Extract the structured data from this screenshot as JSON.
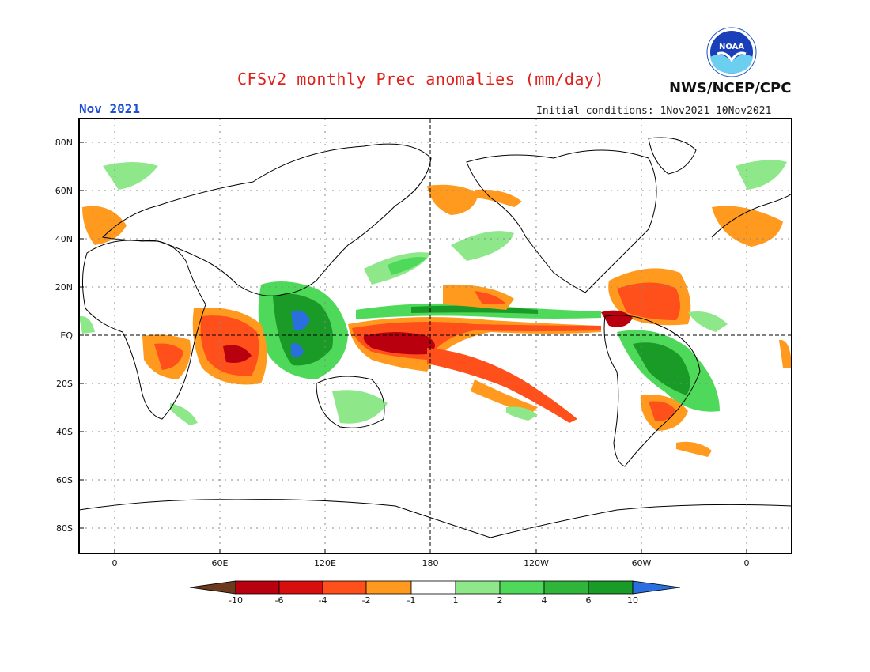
{
  "header": {
    "title": "CFSv2 monthly Prec anomalies (mm/day)",
    "month": "Nov 2021",
    "initial_conditions": "Initial conditions: 1Nov2021—10Nov2021",
    "agency": "NWS/NCEP/CPC",
    "logo_text": "NOAA"
  },
  "map": {
    "lat_ticks": [
      "80N",
      "60N",
      "40N",
      "20N",
      "EQ",
      "20S",
      "40S",
      "60S",
      "80S"
    ],
    "lon_ticks": [
      "0",
      "60E",
      "120E",
      "180",
      "120W",
      "60W",
      "0"
    ],
    "projection": "cylindrical equidistant, centered on 180",
    "grid": "dotted lat/lon lines every 20 degrees",
    "reference_lines": [
      "equator dashed",
      "180 meridian dashed"
    ]
  },
  "colorbar": {
    "labels": [
      "-10",
      "-6",
      "-4",
      "-2",
      "-1",
      "1",
      "2",
      "4",
      "6",
      "10"
    ],
    "colors": [
      "#6b3a1e",
      "#b8000f",
      "#d80d0d",
      "#ff4f1a",
      "#ff9a1f",
      "#ffffff",
      "#8ee88a",
      "#4fd95a",
      "#2fb53a",
      "#1a9a26",
      "#2a6fe0"
    ]
  },
  "anomaly_colors": {
    "very_dry": "#b8000f",
    "dry": "#ff4f1a",
    "slightly_dry": "#ff9a1f",
    "slightly_wet": "#8ee88a",
    "wet": "#4fd95a",
    "very_wet": "#1a9a26",
    "extreme_wet": "#2a6fe0"
  }
}
